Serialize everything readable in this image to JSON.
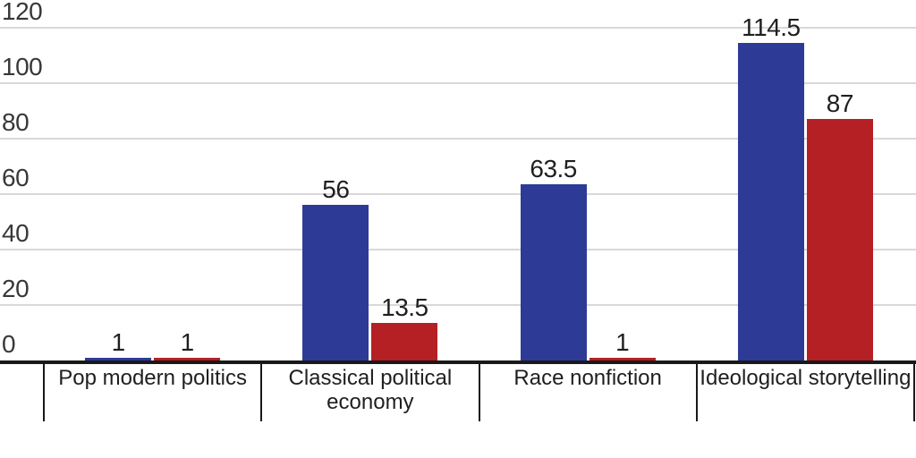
{
  "chart_data": {
    "type": "bar",
    "title": "",
    "xlabel": "",
    "ylabel": "",
    "categories": [
      "Pop modern politics",
      "Classical political economy",
      "Race nonfiction",
      "Ideological storytelling"
    ],
    "series": [
      {
        "name": "series_1",
        "color": "#2D3B96",
        "values": [
          1,
          56,
          63.5,
          114.5
        ]
      },
      {
        "name": "series_2",
        "color": "#B52025",
        "values": [
          1,
          13.5,
          1,
          87
        ]
      }
    ],
    "value_labels": {
      "series_1": [
        "1",
        "56",
        "63.5",
        "114.5"
      ],
      "series_2": [
        "1",
        "13.5",
        "1",
        "87"
      ]
    },
    "ylim": [
      0,
      120
    ],
    "yticks": [
      "0",
      "20",
      "40",
      "60",
      "80",
      "100",
      "120"
    ],
    "grid": "horizontal",
    "legend": "none"
  },
  "colors": {
    "series_1": "#2D3B96",
    "series_2": "#B52025",
    "gridline": "#d8d8d8",
    "axis": "#191919",
    "text": "#1f1f1f"
  }
}
